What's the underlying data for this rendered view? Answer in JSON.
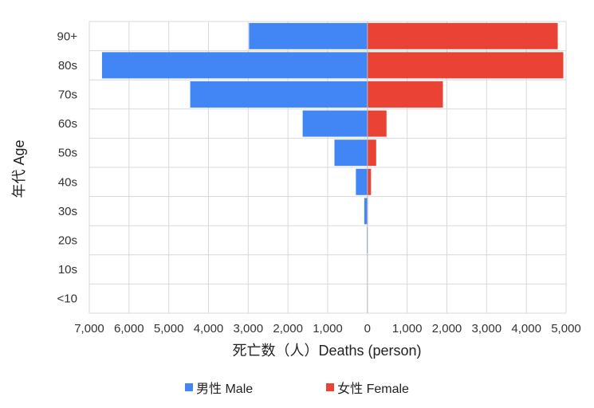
{
  "chart_data": {
    "type": "bar",
    "orientation": "horizontal-population-pyramid",
    "categories": [
      "90+",
      "80s",
      "70s",
      "60s",
      "50s",
      "40s",
      "30s",
      "20s",
      "10s",
      "<10"
    ],
    "series": [
      {
        "name": "男性 Male",
        "color": "#4285f4",
        "values": [
          2980,
          6680,
          4460,
          1630,
          830,
          290,
          80,
          15,
          0,
          0
        ]
      },
      {
        "name": "女性 Female",
        "color": "#ea4335",
        "values": [
          4790,
          4930,
          1900,
          480,
          220,
          90,
          10,
          5,
          0,
          0
        ]
      }
    ],
    "x_tick_labels": [
      "7,000",
      "6,000",
      "5,000",
      "4,000",
      "3,000",
      "2,000",
      "1,000",
      "0",
      "1,000",
      "2,000",
      "3,000",
      "4,000",
      "5,000"
    ],
    "xlim": [
      -7000,
      5000
    ],
    "xlabel": "死亡数（人）Deaths (person)",
    "ylabel": "年代 Age",
    "legend_position": "bottom"
  }
}
